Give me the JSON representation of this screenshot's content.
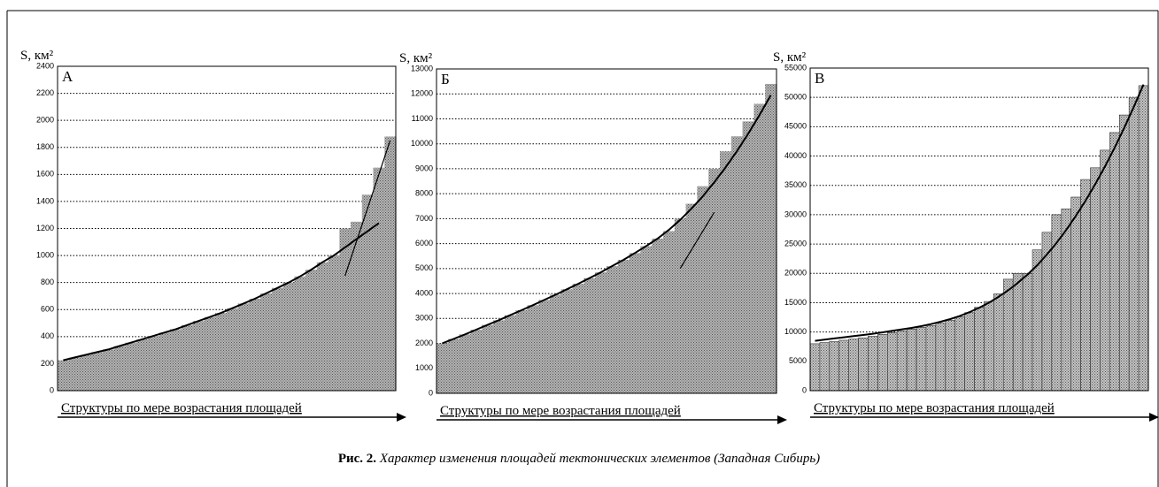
{
  "chart_data": [
    {
      "type": "bar",
      "title": "А",
      "ylabel": "S, км²",
      "xlabel": "Структуры по мере возрастания площадей",
      "color": "#b4b4b4",
      "bar_outline": false,
      "grid": true,
      "ylim": [
        0,
        2400
      ],
      "yticks": [
        0,
        200,
        400,
        600,
        800,
        1000,
        1200,
        1400,
        1600,
        1800,
        2000,
        2200,
        2400
      ],
      "values": [
        225,
        245,
        265,
        285,
        305,
        330,
        355,
        380,
        405,
        430,
        455,
        485,
        515,
        545,
        575,
        610,
        645,
        680,
        720,
        760,
        800,
        845,
        895,
        950,
        1000,
        1200,
        1250,
        1450,
        1650,
        1880
      ],
      "trend": [
        225,
        245,
        265,
        285,
        305,
        330,
        355,
        380,
        405,
        430,
        455,
        485,
        515,
        545,
        575,
        610,
        645,
        680,
        720,
        760,
        800,
        845,
        895,
        950,
        1000,
        1060,
        1120,
        1180,
        1240,
        null
      ],
      "tangent": [
        null,
        null,
        null,
        null,
        null,
        null,
        null,
        null,
        null,
        null,
        null,
        null,
        null,
        null,
        null,
        null,
        null,
        null,
        null,
        null,
        null,
        null,
        null,
        null,
        null,
        850,
        1100,
        1350,
        1600,
        1850
      ]
    },
    {
      "type": "bar",
      "title": "Б",
      "ylabel": "S, км²",
      "xlabel": "Структуры по мере возрастания площадей",
      "color": "#b4b4b4",
      "bar_outline": false,
      "grid": true,
      "ylim": [
        0,
        13000
      ],
      "yticks": [
        0,
        1000,
        2000,
        3000,
        4000,
        5000,
        6000,
        7000,
        8000,
        9000,
        10000,
        11000,
        12000,
        13000
      ],
      "values": [
        2000,
        2180,
        2360,
        2550,
        2740,
        2930,
        3130,
        3330,
        3530,
        3740,
        3950,
        4170,
        4390,
        4620,
        4850,
        5100,
        5350,
        5620,
        5900,
        6200,
        6500,
        7000,
        7600,
        8300,
        9000,
        9700,
        10300,
        10900,
        11600,
        12400
      ],
      "trend": [
        2000,
        2180,
        2360,
        2550,
        2740,
        2930,
        3130,
        3330,
        3530,
        3740,
        3950,
        4170,
        4390,
        4620,
        4850,
        5100,
        5350,
        5620,
        5900,
        6200,
        6550,
        6950,
        7400,
        7900,
        8450,
        9050,
        9700,
        10400,
        11150,
        11950
      ],
      "tangent": [
        null,
        null,
        null,
        null,
        null,
        null,
        null,
        null,
        null,
        null,
        null,
        null,
        null,
        null,
        null,
        null,
        null,
        null,
        null,
        null,
        null,
        5000,
        5750,
        6500,
        7250,
        null,
        null,
        null,
        null,
        null
      ]
    },
    {
      "type": "bar",
      "title": "В",
      "ylabel": "S, км²",
      "xlabel": "Структуры по мере возрастания площадей",
      "color": "#c4c4c4",
      "bar_outline": true,
      "grid": true,
      "ylim": [
        0,
        55000
      ],
      "yticks": [
        0,
        5000,
        10000,
        15000,
        20000,
        25000,
        30000,
        35000,
        40000,
        45000,
        50000,
        55000
      ],
      "values": [
        8000,
        8200,
        8400,
        8600,
        8800,
        9000,
        9300,
        9600,
        9900,
        10200,
        10500,
        10800,
        11100,
        11500,
        12000,
        12600,
        13300,
        14200,
        15200,
        16500,
        19000,
        20000,
        20000,
        24000,
        27000,
        30000,
        31000,
        33000,
        36000,
        38000,
        41000,
        44000,
        47000,
        50000,
        52000
      ],
      "trend": [
        8500,
        8700,
        8900,
        9100,
        9300,
        9500,
        9700,
        9950,
        10200,
        10450,
        10700,
        11000,
        11350,
        11750,
        12200,
        12750,
        13400,
        14150,
        15000,
        16000,
        17100,
        18400,
        19800,
        21400,
        23200,
        25200,
        27400,
        29800,
        32400,
        35200,
        38200,
        41400,
        44800,
        48400,
        52200
      ],
      "tangent": []
    }
  ],
  "caption": {
    "label": "Рис. 2.",
    "text": "Характер изменения площадей тектонических элементов (Западная Сибирь)"
  }
}
